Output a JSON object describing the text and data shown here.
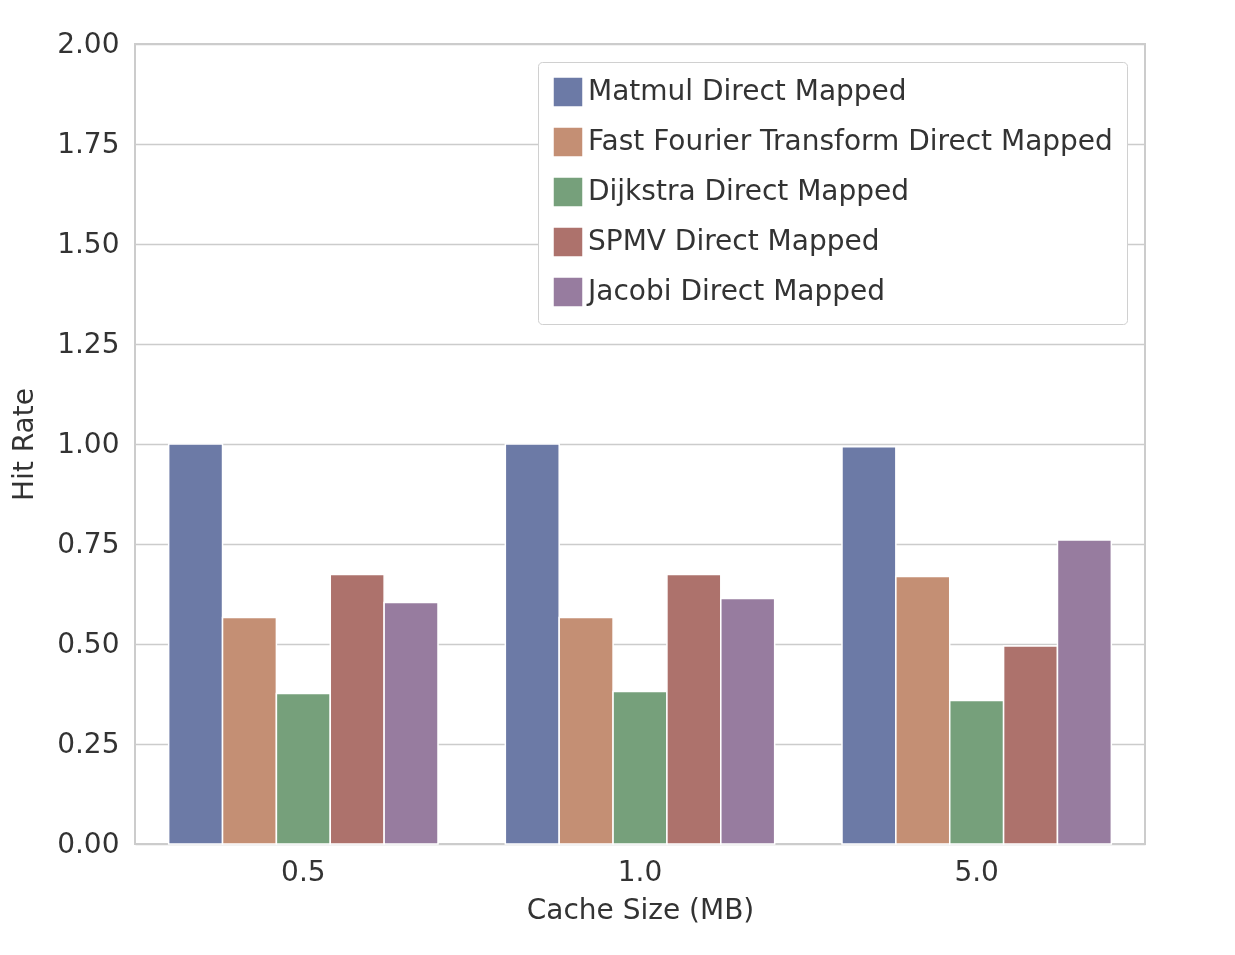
{
  "chart_data": {
    "type": "bar",
    "xlabel": "Cache Size (MB)",
    "ylabel": "Hit Rate",
    "categories": [
      "0.5",
      "1.0",
      "5.0"
    ],
    "series": [
      {
        "name": "Matmul Direct Mapped",
        "color": "#6c7aa6",
        "values": [
          1.0,
          1.0,
          0.993
        ]
      },
      {
        "name": "Fast Fourier Transform Direct Mapped",
        "color": "#c48f74",
        "values": [
          0.566,
          0.566,
          0.669
        ]
      },
      {
        "name": "Dijkstra Direct Mapped",
        "color": "#76a07b",
        "values": [
          0.376,
          0.381,
          0.359
        ]
      },
      {
        "name": "SPMV Direct Mapped",
        "color": "#ad726c",
        "values": [
          0.674,
          0.674,
          0.495
        ]
      },
      {
        "name": "Jacobi Direct Mapped",
        "color": "#977c9f",
        "values": [
          0.604,
          0.614,
          0.76
        ]
      }
    ],
    "ylim": [
      0,
      2
    ],
    "yticks": [
      {
        "value": 0,
        "label": "0.00"
      },
      {
        "value": 0.25,
        "label": "0.25"
      },
      {
        "value": 0.5,
        "label": "0.50"
      },
      {
        "value": 0.75,
        "label": "0.75"
      },
      {
        "value": 1,
        "label": "1.00"
      },
      {
        "value": 1.25,
        "label": "1.25"
      },
      {
        "value": 1.5,
        "label": "1.50"
      },
      {
        "value": 1.75,
        "label": "1.75"
      },
      {
        "value": 2,
        "label": "2.00"
      }
    ],
    "grid": "y",
    "legend": "top right"
  }
}
